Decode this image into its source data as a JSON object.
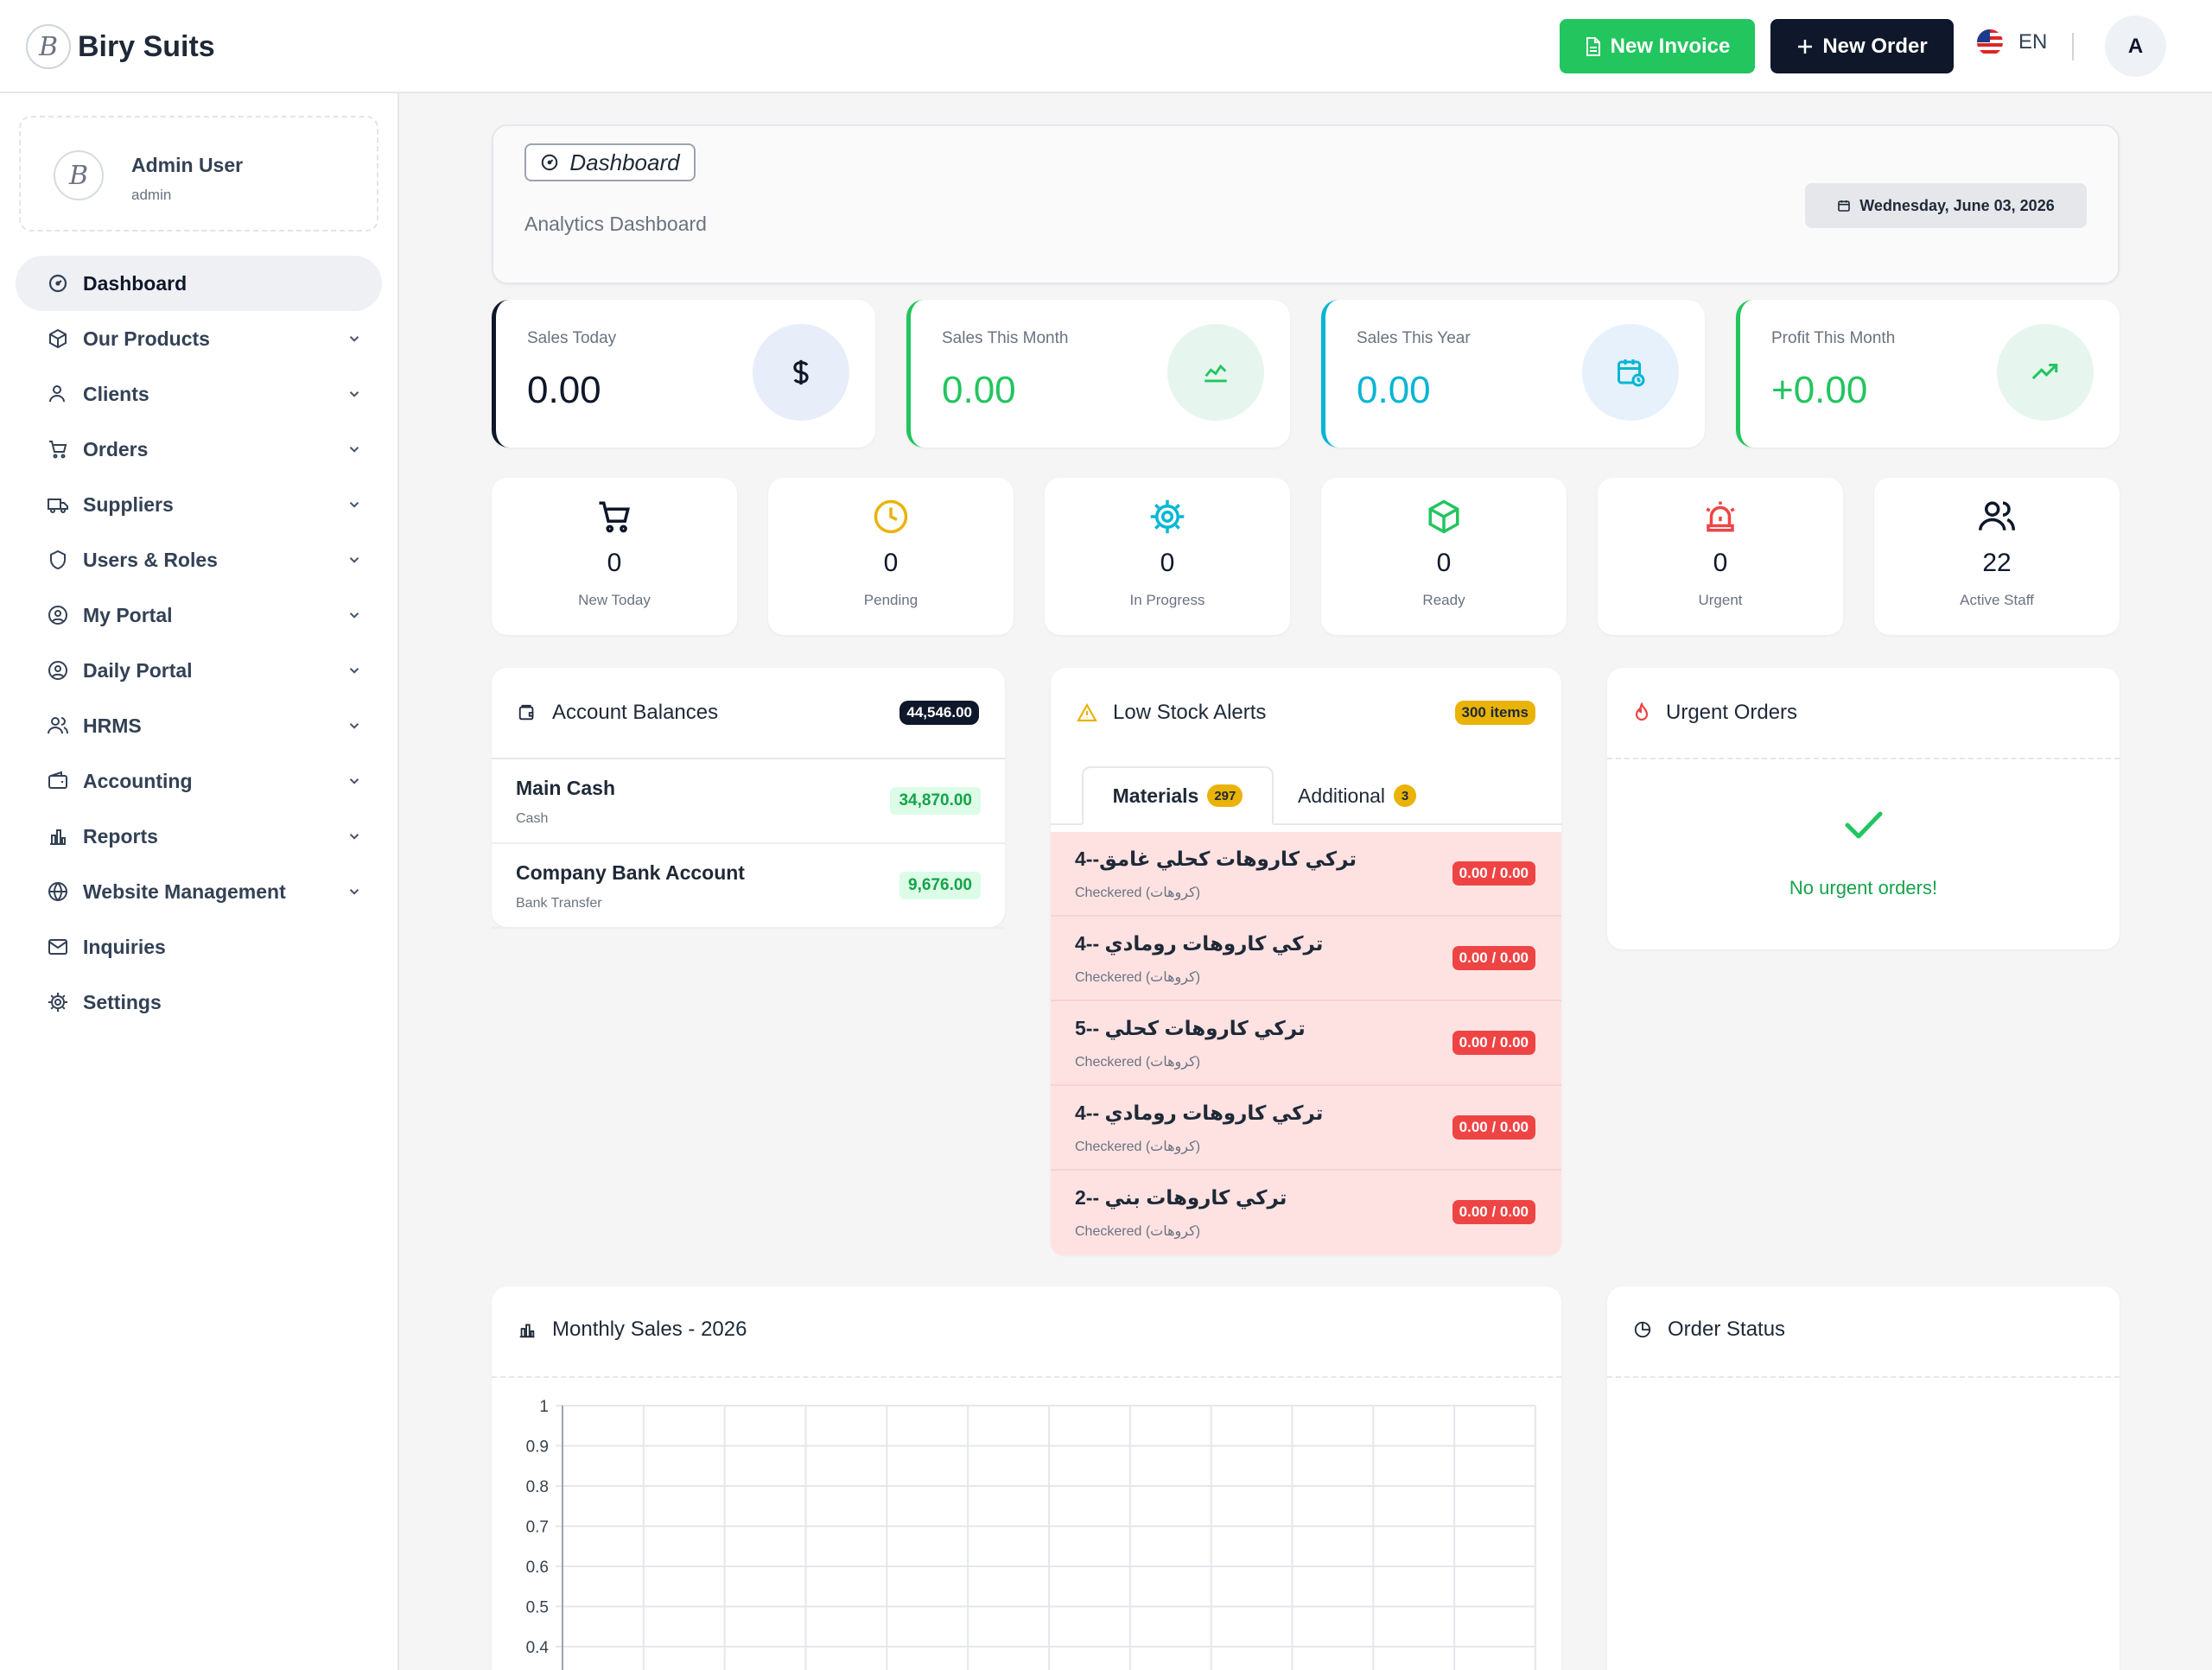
{
  "brand": {
    "name": "Biry Suits",
    "logo_letter": "B"
  },
  "topbar": {
    "new_invoice": "New Invoice",
    "new_order": "New Order",
    "lang": "EN",
    "avatar": "A"
  },
  "user": {
    "name": "Admin User",
    "role": "admin",
    "avatar_letter": "B"
  },
  "nav": [
    {
      "label": "Dashboard",
      "icon": "dashboard-icon",
      "active": true
    },
    {
      "label": "Our Products",
      "icon": "box-icon"
    },
    {
      "label": "Clients",
      "icon": "user-icon"
    },
    {
      "label": "Orders",
      "icon": "cart-icon"
    },
    {
      "label": "Suppliers",
      "icon": "truck-icon"
    },
    {
      "label": "Users & Roles",
      "icon": "shield-icon"
    },
    {
      "label": "My Portal",
      "icon": "user-circle-icon"
    },
    {
      "label": "Daily Portal",
      "icon": "user-circle-icon"
    },
    {
      "label": "HRMS",
      "icon": "users-icon"
    },
    {
      "label": "Accounting",
      "icon": "wallet-icon"
    },
    {
      "label": "Reports",
      "icon": "bar-chart-icon"
    },
    {
      "label": "Website Management",
      "icon": "globe-icon"
    },
    {
      "label": "Inquiries",
      "icon": "mail-icon"
    },
    {
      "label": "Settings",
      "icon": "gear-icon"
    }
  ],
  "header": {
    "badge": "Dashboard",
    "subtitle": "Analytics Dashboard",
    "date": "Wednesday, June 03, 2026"
  },
  "stats": [
    {
      "title": "Sales Today",
      "value": "0.00",
      "color": "#0f172a",
      "icon": "dollar-icon"
    },
    {
      "title": "Sales This Month",
      "value": "0.00",
      "color": "#22c55e",
      "icon": "line-chart-icon"
    },
    {
      "title": "Sales This Year",
      "value": "0.00",
      "color": "#06b6d4",
      "icon": "calendar-clock-icon"
    },
    {
      "title": "Profit This Month",
      "value": "+0.00",
      "color": "#22c55e",
      "icon": "trending-up-icon"
    }
  ],
  "mini_stats": [
    {
      "label": "New Today",
      "value": "0",
      "icon": "cart-icon",
      "color": "#0f172a"
    },
    {
      "label": "Pending",
      "value": "0",
      "icon": "clock-icon",
      "color": "#eab308"
    },
    {
      "label": "In Progress",
      "value": "0",
      "icon": "gear-icon",
      "color": "#06b6d4"
    },
    {
      "label": "Ready",
      "value": "0",
      "icon": "box-icon",
      "color": "#22c55e"
    },
    {
      "label": "Urgent",
      "value": "0",
      "icon": "siren-icon",
      "color": "#ef4444"
    },
    {
      "label": "Active Staff",
      "value": "22",
      "icon": "users-icon",
      "color": "#0f172a"
    }
  ],
  "accounts": {
    "title": "Account Balances",
    "total": "44,546.00",
    "rows": [
      {
        "name": "Main Cash",
        "type": "Cash",
        "amount": "34,870.00"
      },
      {
        "name": "Company Bank Account",
        "type": "Bank Transfer",
        "amount": "9,676.00"
      }
    ]
  },
  "low_stock": {
    "title": "Low Stock Alerts",
    "count": "300 items",
    "tabs": [
      {
        "label": "Materials",
        "count": "297"
      },
      {
        "label": "Additional",
        "count": "3"
      }
    ],
    "rows": [
      {
        "name": "تركي كاروهات كحلي غامق--4",
        "sub": "Checkered (كروهات)",
        "qty": "0.00 / 0.00"
      },
      {
        "name": "تركي كاروهات رومادي --4",
        "sub": "Checkered (كروهات)",
        "qty": "0.00 / 0.00"
      },
      {
        "name": "تركي كاروهات كحلي --5",
        "sub": "Checkered (كروهات)",
        "qty": "0.00 / 0.00"
      },
      {
        "name": "تركي كاروهات رومادي --4",
        "sub": "Checkered (كروهات)",
        "qty": "0.00 / 0.00"
      },
      {
        "name": "تركي كاروهات بني --2",
        "sub": "Checkered (كروهات)",
        "qty": "0.00 / 0.00"
      }
    ]
  },
  "urgent": {
    "title": "Urgent Orders",
    "empty_text": "No urgent orders!"
  },
  "monthly": {
    "title": "Monthly Sales - 2026"
  },
  "order_status": {
    "title": "Order Status"
  },
  "chart_data": {
    "type": "line",
    "title": "Monthly Sales - 2026",
    "series": [],
    "y_ticks": [
      "1",
      "0.9",
      "0.8",
      "0.7",
      "0.6",
      "0.5",
      "0.4"
    ],
    "ylim": [
      0,
      1
    ],
    "grid": true
  }
}
